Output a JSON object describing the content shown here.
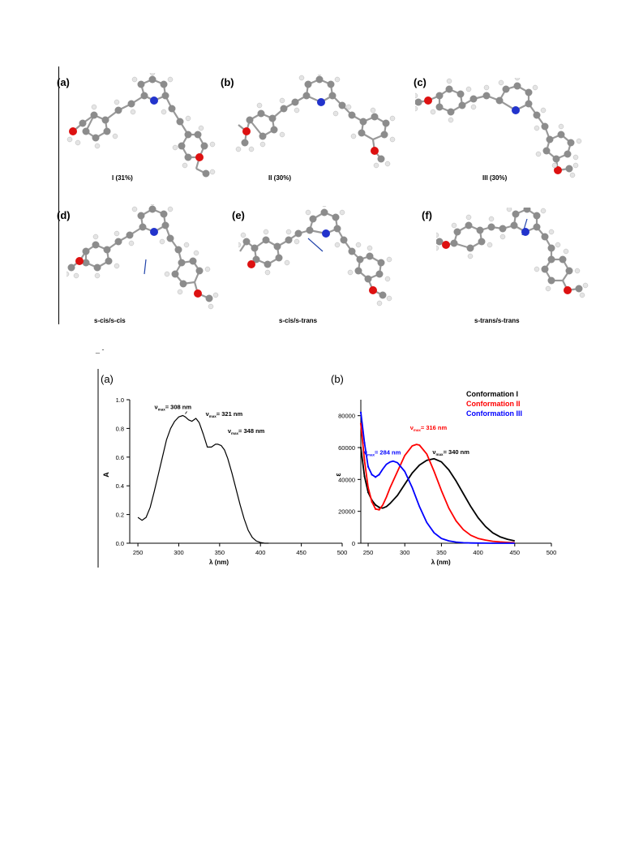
{
  "figure1": {
    "panels": [
      {
        "label": "(a)",
        "caption": "I (31%)"
      },
      {
        "label": "(b)",
        "caption": "II (30%)"
      },
      {
        "label": "(c)",
        "caption": "III (30%)"
      },
      {
        "label": "(d)",
        "caption": "s-cis/s-cis"
      },
      {
        "label": "(e)",
        "caption": "s-cis/s-trans"
      },
      {
        "label": "(f)",
        "caption": "s-trans/s-trans"
      }
    ],
    "stray_mark": "_ -"
  },
  "chart_data": [
    {
      "type": "line",
      "panel_label": "(a)",
      "xlabel": "λ (nm)",
      "ylabel": "A",
      "xlim": [
        240,
        500
      ],
      "ylim": [
        0,
        1.0
      ],
      "x_ticks": [
        "250",
        "300",
        "350",
        "400",
        "450",
        "500"
      ],
      "y_ticks": [
        "0.0",
        "0.2",
        "0.4",
        "0.6",
        "0.8",
        "1.0"
      ],
      "series": [
        {
          "color": "#000000",
          "x": [
            250,
            255,
            260,
            265,
            270,
            275,
            280,
            285,
            290,
            295,
            300,
            305,
            308,
            312,
            316,
            321,
            325,
            330,
            335,
            340,
            345,
            348,
            352,
            356,
            360,
            365,
            370,
            375,
            380,
            385,
            390,
            395,
            400,
            405,
            410
          ],
          "y": [
            0.18,
            0.16,
            0.18,
            0.25,
            0.36,
            0.48,
            0.6,
            0.72,
            0.8,
            0.85,
            0.88,
            0.89,
            0.88,
            0.86,
            0.85,
            0.87,
            0.84,
            0.76,
            0.67,
            0.67,
            0.69,
            0.69,
            0.68,
            0.65,
            0.59,
            0.49,
            0.38,
            0.27,
            0.17,
            0.09,
            0.04,
            0.015,
            0.005,
            0.0,
            0.0
          ]
        }
      ],
      "annotations": [
        {
          "sym": "ν",
          "sub": "max",
          "text": "= 308 nm",
          "x": 308,
          "y": 0.89
        },
        {
          "sym": "ν",
          "sub": "max",
          "text": "= 321 nm",
          "x": 321,
          "y": 0.87
        },
        {
          "sym": "ν",
          "sub": "max",
          "text": "= 348 nm",
          "x": 348,
          "y": 0.69
        }
      ]
    },
    {
      "type": "line",
      "panel_label": "(b)",
      "xlabel": "λ (nm)",
      "ylabel": "ε",
      "xlim": [
        240,
        500
      ],
      "ylim": [
        0,
        90000
      ],
      "x_ticks": [
        "250",
        "300",
        "350",
        "400",
        "450",
        "500"
      ],
      "y_ticks": [
        "0",
        "20000",
        "40000",
        "60000",
        "80000"
      ],
      "legend_position": "top-right",
      "series": [
        {
          "name": "Conformation I",
          "color": "#000000",
          "x": [
            240,
            245,
            250,
            255,
            260,
            265,
            270,
            275,
            280,
            290,
            300,
            310,
            320,
            330,
            340,
            350,
            360,
            370,
            380,
            390,
            400,
            410,
            420,
            430,
            440,
            450
          ],
          "y": [
            60000,
            42000,
            32000,
            27000,
            24000,
            22500,
            22000,
            23000,
            25000,
            30000,
            37000,
            44000,
            49000,
            52000,
            53000,
            51000,
            46000,
            39000,
            31000,
            23000,
            16000,
            10500,
            6500,
            4000,
            2500,
            1500
          ]
        },
        {
          "name": "Conformation II",
          "color": "#ff0000",
          "x": [
            240,
            245,
            250,
            255,
            260,
            265,
            270,
            275,
            280,
            290,
            300,
            310,
            316,
            320,
            330,
            340,
            350,
            360,
            370,
            380,
            390,
            400,
            410,
            420,
            430,
            440,
            450
          ],
          "y": [
            75000,
            52000,
            35000,
            26000,
            21500,
            21000,
            24000,
            29000,
            35000,
            45000,
            55000,
            61000,
            62000,
            61500,
            56000,
            45000,
            33000,
            22000,
            14000,
            8500,
            5000,
            3000,
            2000,
            1200,
            800,
            500,
            300
          ]
        },
        {
          "name": "Conformation III",
          "color": "#0000ff",
          "x": [
            240,
            245,
            250,
            255,
            260,
            265,
            270,
            275,
            280,
            284,
            290,
            300,
            310,
            320,
            330,
            340,
            350,
            360,
            370,
            380,
            390,
            400,
            410,
            420,
            430,
            440,
            450
          ],
          "y": [
            82000,
            63000,
            48000,
            43000,
            41500,
            43000,
            46500,
            49500,
            51000,
            51500,
            50500,
            45000,
            35000,
            23000,
            13000,
            6500,
            3000,
            1500,
            700,
            300,
            150,
            80,
            40,
            20,
            10,
            5,
            0
          ]
        }
      ],
      "annotations": [
        {
          "sym": "ν",
          "sub": "max",
          "text": "= 316 nm",
          "color": "#ff0000",
          "x": 316,
          "y": 62000
        },
        {
          "sym": "ν",
          "sub": "max",
          "text": "= 284 nm",
          "color": "#0000ff",
          "x": 284,
          "y": 51500
        },
        {
          "sym": "ν",
          "sub": "max",
          "text": "= 340 nm",
          "color": "#000000",
          "x": 340,
          "y": 53000
        }
      ]
    }
  ],
  "colors": {
    "carbon": "#8c8c8c",
    "hydrogen": "#e4e4e4",
    "oxygen": "#dd1111",
    "nitrogen": "#2233cc",
    "dipole_arrow": "#2244aa"
  }
}
